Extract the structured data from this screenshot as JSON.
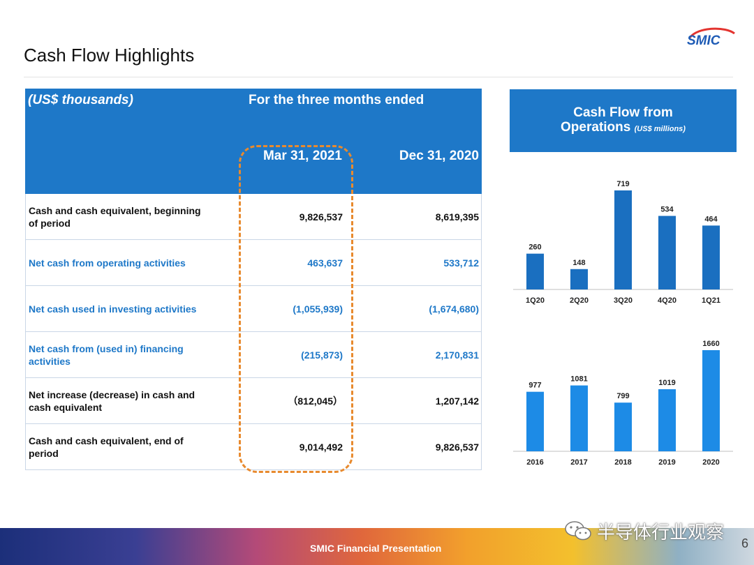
{
  "slide": {
    "title": "Cash Flow Highlights",
    "footer": "SMIC Financial Presentation",
    "page_number": "6",
    "logo_text": "SMIC",
    "watermark": "半导体行业观察"
  },
  "table": {
    "units": "(US$ thousands)",
    "period_header": "For the three months ended",
    "columns": [
      "Mar 31, 2021",
      "Dec 31, 2020"
    ],
    "rows": [
      {
        "label": "Cash and cash equivalent, beginning of period",
        "values": [
          "9,826,537",
          "8,619,395"
        ]
      },
      {
        "label": "Net cash from operating activities",
        "values": [
          "463,637",
          "533,712"
        ]
      },
      {
        "label": "Net cash used in investing activities",
        "values": [
          "(1,055,939)",
          "(1,674,680)"
        ]
      },
      {
        "label": "Net cash from (used in) financing activities",
        "values": [
          "(215,873)",
          "2,170,831"
        ]
      },
      {
        "label": "Net increase (decrease) in cash and cash equivalent",
        "values": [
          "（812,045）",
          "1,207,142"
        ]
      },
      {
        "label": "Cash and cash equivalent, end of period",
        "values": [
          "9,014,492",
          "9,826,537"
        ]
      }
    ],
    "highlight_color": "#e88a2e"
  },
  "chart_panel": {
    "title_line1": "Cash Flow from",
    "title_line2": "Operations",
    "units": "(US$ millions)"
  },
  "colors": {
    "header_blue": "#1e78c8",
    "bar_quarterly": "#1a6fc0",
    "bar_annual": "#1d8be6"
  },
  "chart_data": [
    {
      "type": "bar",
      "categories": [
        "1Q20",
        "2Q20",
        "3Q20",
        "4Q20",
        "1Q21"
      ],
      "values": [
        260,
        148,
        719,
        534,
        464
      ],
      "title": "",
      "xlabel": "",
      "ylabel": "",
      "ylim": [
        0,
        719
      ]
    },
    {
      "type": "bar",
      "categories": [
        "2016",
        "2017",
        "2018",
        "2019",
        "2020"
      ],
      "values": [
        977,
        1081,
        799,
        1019,
        1660
      ],
      "title": "",
      "xlabel": "",
      "ylabel": "",
      "ylim": [
        0,
        1660
      ]
    }
  ]
}
